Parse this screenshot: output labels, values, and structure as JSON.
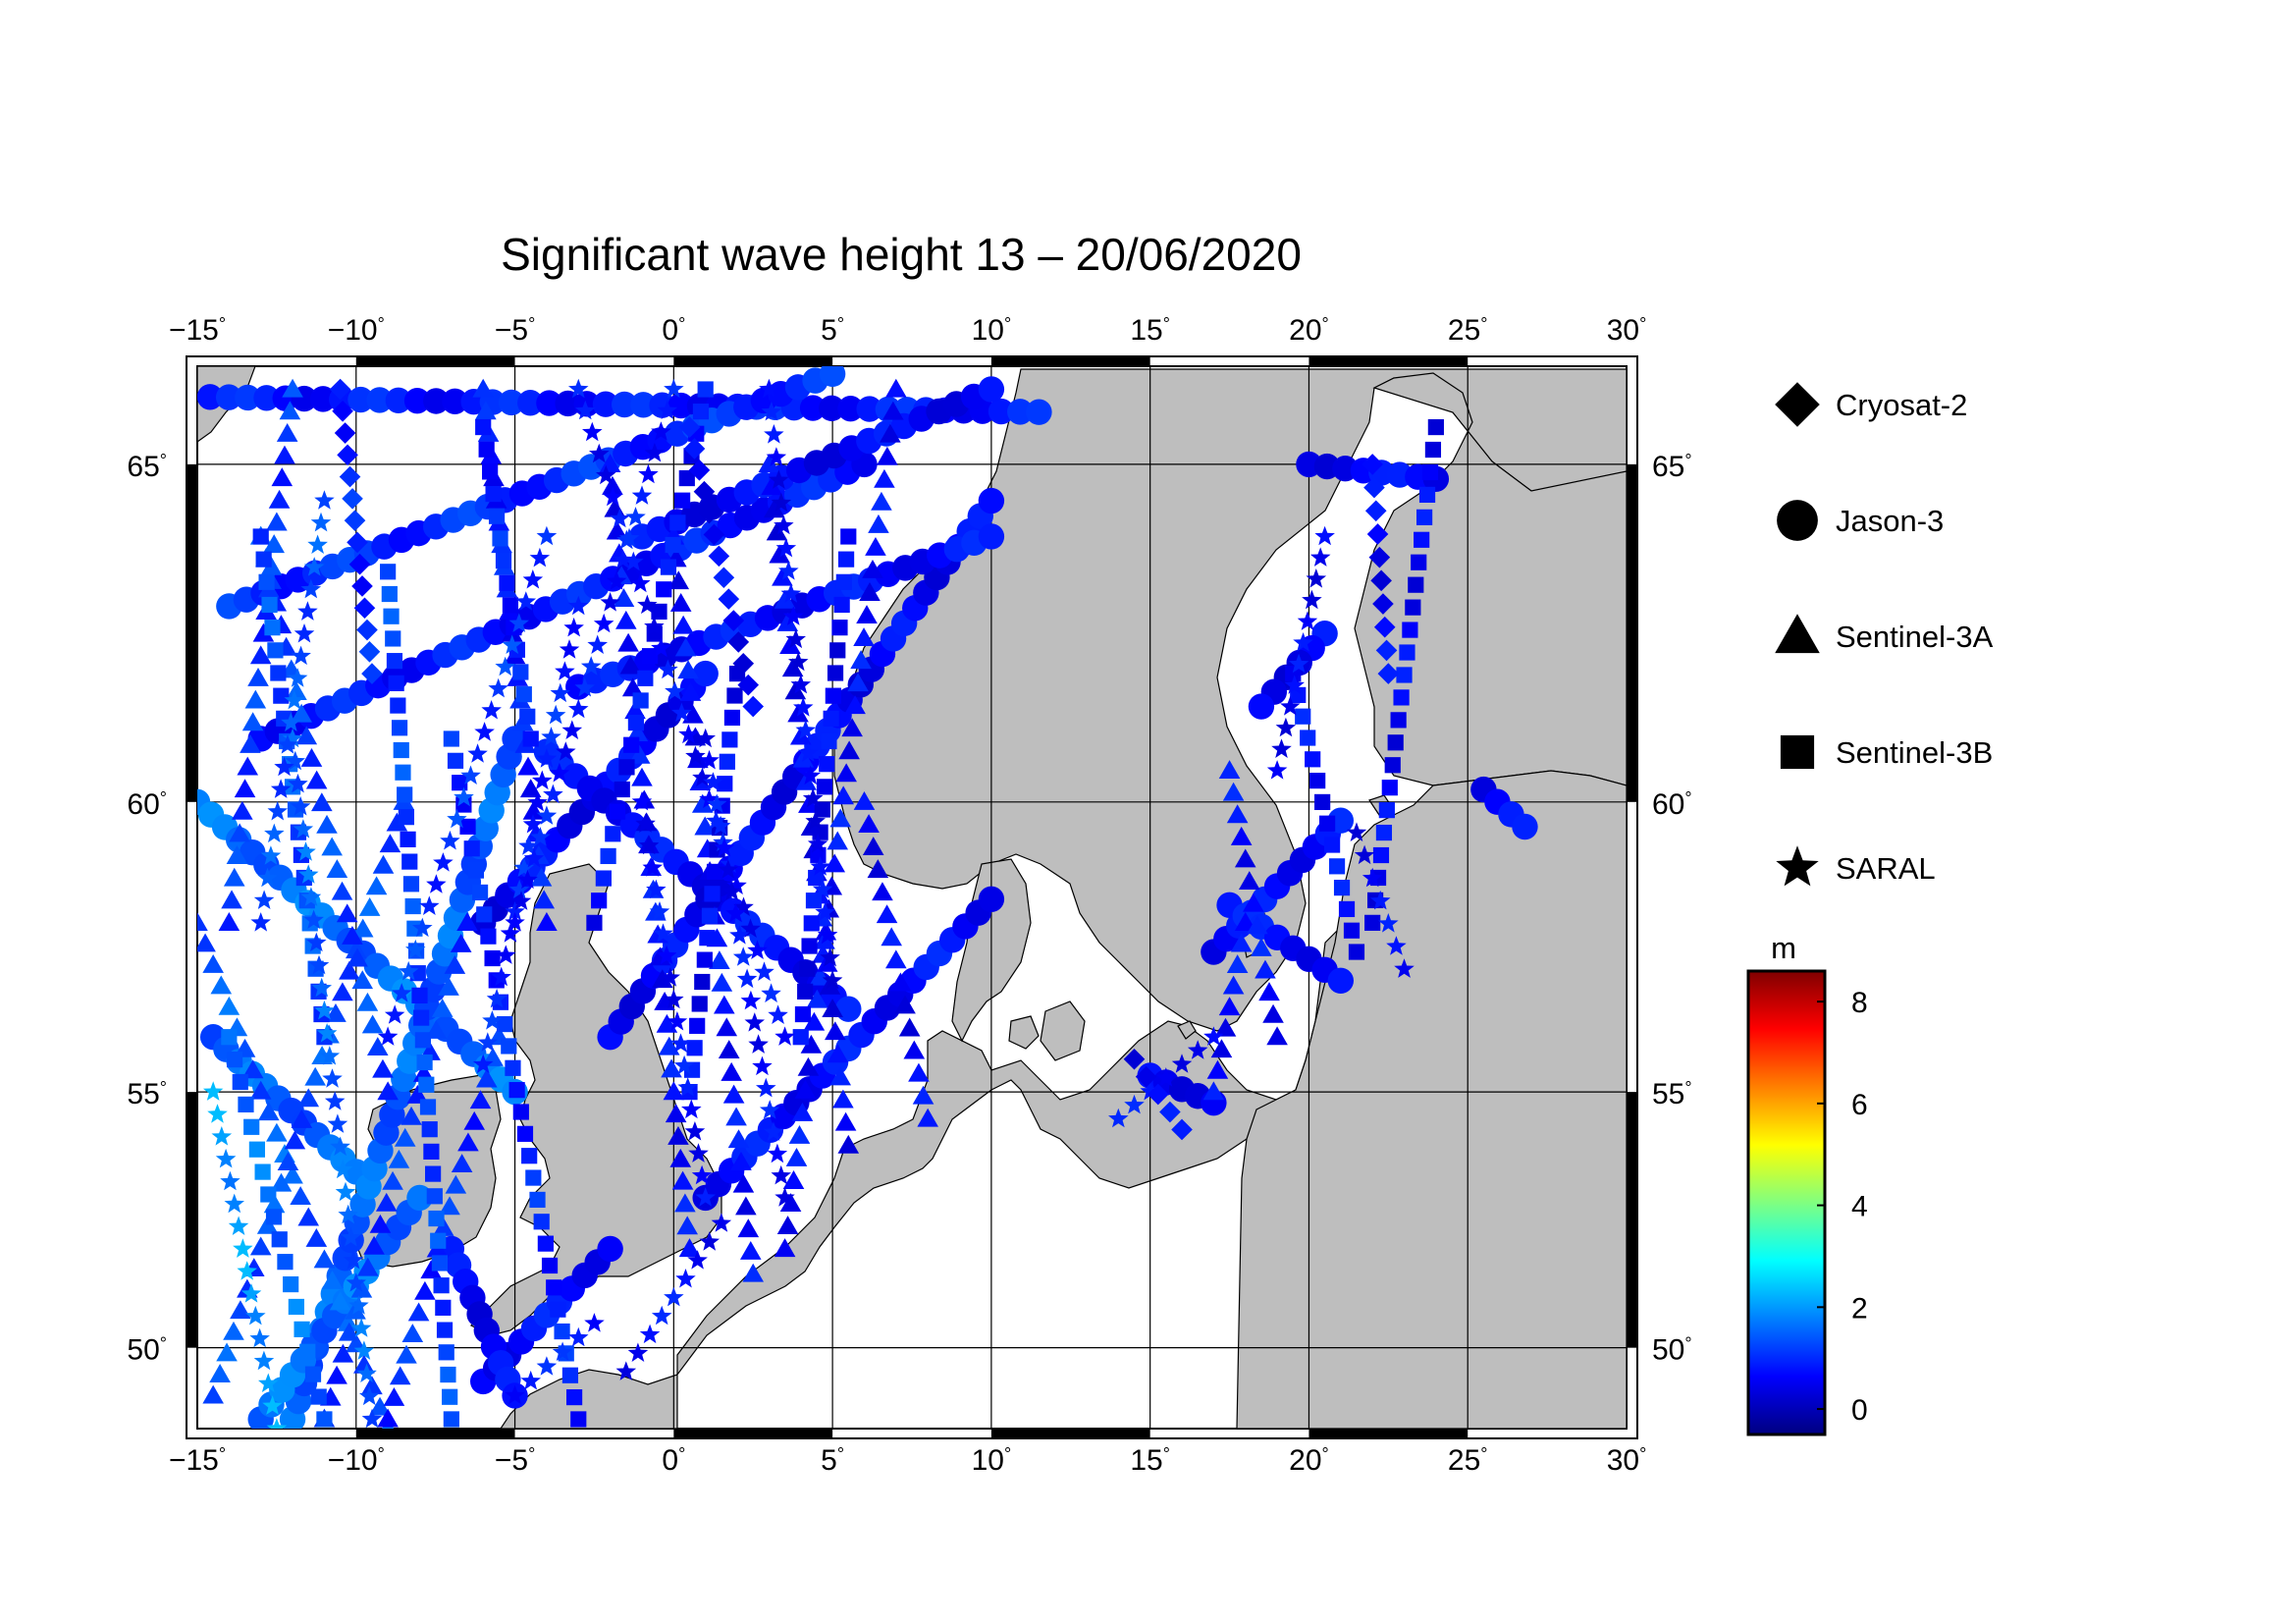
{
  "title": "Significant wave height 13 – 20/06/2020",
  "map": {
    "lon_range": [
      -15,
      30
    ],
    "lat_range": [
      48.3,
      66.3
    ],
    "lon_ticks": [
      -15,
      -10,
      -5,
      0,
      5,
      10,
      15,
      20,
      25,
      30
    ],
    "lat_ticks": [
      50,
      55,
      60,
      65
    ],
    "degree_symbol": "°",
    "land_color": "#bebebe",
    "sea_color": "#ffffff"
  },
  "legend": {
    "items": [
      {
        "label": "Cryosat-2",
        "symbol": "diamond"
      },
      {
        "label": "Jason-3",
        "symbol": "circle"
      },
      {
        "label": "Sentinel-3A",
        "symbol": "triangle"
      },
      {
        "label": "Sentinel-3B",
        "symbol": "square"
      },
      {
        "label": "SARAL",
        "symbol": "star"
      }
    ]
  },
  "colorbar": {
    "unit": "m",
    "min": -0.5,
    "max": 8.6,
    "ticks": [
      0,
      2,
      4,
      6,
      8
    ],
    "colors": [
      "#000080",
      "#0000ff",
      "#0080ff",
      "#00ffff",
      "#80ff80",
      "#ffff00",
      "#ff8000",
      "#ff0000",
      "#800000"
    ]
  },
  "tracks": [
    {
      "sat": "circle",
      "from": [
        -14.6,
        65.9
      ],
      "to": [
        11.5,
        65.7
      ],
      "h": 0.8
    },
    {
      "sat": "circle",
      "from": [
        -14.0,
        63.0
      ],
      "to": [
        5.0,
        66.2
      ],
      "h": 1.0
    },
    {
      "sat": "circle",
      "from": [
        -13.0,
        61.0
      ],
      "to": [
        6.0,
        65.0
      ],
      "h": 0.8
    },
    {
      "sat": "circle",
      "from": [
        -14.5,
        56.0
      ],
      "to": [
        -10.0,
        53.5
      ],
      "h": 1.5
    },
    {
      "sat": "circle",
      "from": [
        -15.0,
        60.0
      ],
      "to": [
        -5.0,
        55.0
      ],
      "h": 1.6
    },
    {
      "sat": "circle",
      "from": [
        -12.0,
        48.5
      ],
      "to": [
        -5.0,
        61.0
      ],
      "h": 1.5
    },
    {
      "sat": "circle",
      "from": [
        -6.0,
        58.0
      ],
      "to": [
        1.0,
        62.0
      ],
      "h": 0.6
    },
    {
      "sat": "circle",
      "from": [
        -13.0,
        48.5
      ],
      "to": [
        -8.0,
        53.0
      ],
      "h": 1.6
    },
    {
      "sat": "circle",
      "from": [
        -4.0,
        60.8
      ],
      "to": [
        5.5,
        56.5
      ],
      "h": 0.7
    },
    {
      "sat": "circle",
      "from": [
        -2.0,
        56.0
      ],
      "to": [
        10.0,
        64.5
      ],
      "h": 0.6
    },
    {
      "sat": "circle",
      "from": [
        1.0,
        53.0
      ],
      "to": [
        10.0,
        58.4
      ],
      "h": 0.7
    },
    {
      "sat": "circle",
      "from": [
        -3.0,
        61.8
      ],
      "to": [
        10.0,
        64.0
      ],
      "h": 0.7
    },
    {
      "sat": "circle",
      "from": [
        -1.0,
        64.0
      ],
      "to": [
        10.0,
        66.0
      ],
      "h": 0.6
    },
    {
      "sat": "circle",
      "from": [
        -6.0,
        49.3
      ],
      "to": [
        -2.0,
        52.0
      ],
      "h": 0.7
    },
    {
      "sat": "circle",
      "from": [
        17.0,
        57.5
      ],
      "to": [
        21.0,
        59.7
      ],
      "h": 0.7
    },
    {
      "sat": "circle",
      "from": [
        17.5,
        58.3
      ],
      "to": [
        21.0,
        57.0
      ],
      "h": 0.7
    },
    {
      "sat": "circle",
      "from": [
        20.5,
        62.6
      ],
      "to": [
        18.5,
        61.5
      ],
      "h": 0.6
    },
    {
      "sat": "circle",
      "from": [
        20.0,
        65.0
      ],
      "to": [
        24.0,
        64.8
      ],
      "h": 0.6
    },
    {
      "sat": "circle",
      "from": [
        25.5,
        60.2
      ],
      "to": [
        26.8,
        59.6
      ],
      "h": 0.6
    },
    {
      "sat": "circle",
      "from": [
        -7.0,
        52.0
      ],
      "to": [
        -5.0,
        49.0
      ],
      "h": 0.6
    },
    {
      "sat": "circle",
      "from": [
        15.0,
        55.3
      ],
      "to": [
        17.0,
        54.8
      ],
      "h": 0.6
    },
    {
      "sat": "triangle",
      "from": [
        -15.0,
        58.0
      ],
      "to": [
        -9.0,
        48.3
      ],
      "h": 1.4
    },
    {
      "sat": "triangle",
      "from": [
        -14.5,
        49.0
      ],
      "to": [
        -8.5,
        60.0
      ],
      "h": 1.3
    },
    {
      "sat": "triangle",
      "from": [
        -13.0,
        64.0
      ],
      "to": [
        -9.0,
        55.0
      ],
      "h": 1.2
    },
    {
      "sat": "triangle",
      "from": [
        -11.0,
        48.5
      ],
      "to": [
        -6.5,
        58.0
      ],
      "h": 1.1
    },
    {
      "sat": "triangle",
      "from": [
        -9.0,
        48.5
      ],
      "to": [
        -5.5,
        56.0
      ],
      "h": 1.0
    },
    {
      "sat": "triangle",
      "from": [
        0.5,
        52.0
      ],
      "to": [
        -2.0,
        65.0
      ],
      "h": 0.7
    },
    {
      "sat": "triangle",
      "from": [
        2.5,
        51.5
      ],
      "to": [
        0.0,
        64.0
      ],
      "h": 0.7
    },
    {
      "sat": "triangle",
      "from": [
        3.5,
        52.0
      ],
      "to": [
        7.0,
        66.0
      ],
      "h": 0.7
    },
    {
      "sat": "triangle",
      "from": [
        5.5,
        54.0
      ],
      "to": [
        3.0,
        65.0
      ],
      "h": 0.6
    },
    {
      "sat": "triangle",
      "from": [
        8.0,
        54.5
      ],
      "to": [
        6.0,
        60.0
      ],
      "h": 0.6
    },
    {
      "sat": "triangle",
      "from": [
        17.0,
        55.0
      ],
      "to": [
        18.0,
        58.0
      ],
      "h": 0.7
    },
    {
      "sat": "triangle",
      "from": [
        19.0,
        56.0
      ],
      "to": [
        17.5,
        60.5
      ],
      "h": 0.7
    },
    {
      "sat": "triangle",
      "from": [
        -4.0,
        58.0
      ],
      "to": [
        -6.0,
        66.0
      ],
      "h": 0.8
    },
    {
      "sat": "triangle",
      "from": [
        -12.0,
        66.0
      ],
      "to": [
        -14.0,
        58.0
      ],
      "h": 1.1
    },
    {
      "sat": "square",
      "from": [
        -14.0,
        56.0
      ],
      "to": [
        -11.0,
        48.5
      ],
      "h": 1.6
    },
    {
      "sat": "square",
      "from": [
        -13.0,
        64.0
      ],
      "to": [
        -11.0,
        56.0
      ],
      "h": 1.3
    },
    {
      "sat": "square",
      "from": [
        -9.0,
        63.5
      ],
      "to": [
        -7.0,
        48.5
      ],
      "h": 1.2
    },
    {
      "sat": "square",
      "from": [
        -7.0,
        61.0
      ],
      "to": [
        -3.0,
        48.5
      ],
      "h": 0.9
    },
    {
      "sat": "square",
      "from": [
        -6.0,
        65.5
      ],
      "to": [
        -4.5,
        61.0
      ],
      "h": 0.9
    },
    {
      "sat": "square",
      "from": [
        -2.5,
        58.0
      ],
      "to": [
        1.0,
        66.0
      ],
      "h": 0.7
    },
    {
      "sat": "square",
      "from": [
        0.5,
        55.0
      ],
      "to": [
        2.0,
        62.0
      ],
      "h": 0.6
    },
    {
      "sat": "square",
      "from": [
        4.0,
        56.0
      ],
      "to": [
        5.5,
        64.0
      ],
      "h": 0.6
    },
    {
      "sat": "square",
      "from": [
        22.0,
        58.0
      ],
      "to": [
        24.0,
        65.5
      ],
      "h": 0.6
    },
    {
      "sat": "square",
      "from": [
        19.5,
        62.0
      ],
      "to": [
        21.5,
        57.5
      ],
      "h": 0.7
    },
    {
      "sat": "star",
      "from": [
        -14.5,
        55.0
      ],
      "to": [
        -12.5,
        48.3
      ],
      "h": 2.0
    },
    {
      "sat": "star",
      "from": [
        -12.0,
        61.0
      ],
      "to": [
        -9.5,
        48.5
      ],
      "h": 1.5
    },
    {
      "sat": "star",
      "from": [
        -9.0,
        56.0
      ],
      "to": [
        -4.0,
        64.0
      ],
      "h": 1.1
    },
    {
      "sat": "star",
      "from": [
        -6.0,
        55.5
      ],
      "to": [
        -3.0,
        63.0
      ],
      "h": 0.9
    },
    {
      "sat": "star",
      "from": [
        -3.0,
        66.0
      ],
      "to": [
        3.5,
        56.0
      ],
      "h": 0.7
    },
    {
      "sat": "star",
      "from": [
        -1.0,
        60.0
      ],
      "to": [
        1.0,
        53.0
      ],
      "h": 0.7
    },
    {
      "sat": "star",
      "from": [
        1.0,
        61.0
      ],
      "to": [
        3.5,
        53.0
      ],
      "h": 0.7
    },
    {
      "sat": "star",
      "from": [
        3.0,
        66.0
      ],
      "to": [
        5.0,
        57.0
      ],
      "h": 0.6
    },
    {
      "sat": "star",
      "from": [
        0.0,
        66.0
      ],
      "to": [
        -5.0,
        58.0
      ],
      "h": 0.8
    },
    {
      "sat": "star",
      "from": [
        1.5,
        52.5
      ],
      "to": [
        -1.5,
        49.5
      ],
      "h": 0.7
    },
    {
      "sat": "star",
      "from": [
        -5.0,
        49.0
      ],
      "to": [
        -2.5,
        50.5
      ],
      "h": 0.8
    },
    {
      "sat": "star",
      "from": [
        14.0,
        54.5
      ],
      "to": [
        17.0,
        56.0
      ],
      "h": 0.7
    },
    {
      "sat": "star",
      "from": [
        20.5,
        64.0
      ],
      "to": [
        19.0,
        60.5
      ],
      "h": 0.6
    },
    {
      "sat": "star",
      "from": [
        21.5,
        59.5
      ],
      "to": [
        23.0,
        57.2
      ],
      "h": 0.6
    },
    {
      "sat": "star",
      "from": [
        -11.0,
        64.5
      ],
      "to": [
        -13.0,
        58.0
      ],
      "h": 1.3
    },
    {
      "sat": "diamond",
      "from": [
        0.5,
        65.5
      ],
      "to": [
        2.5,
        61.5
      ],
      "h": 0.6
    },
    {
      "sat": "diamond",
      "from": [
        -10.5,
        66.0
      ],
      "to": [
        -9.5,
        62.0
      ],
      "h": 0.9
    },
    {
      "sat": "diamond",
      "from": [
        14.5,
        55.6
      ],
      "to": [
        16.0,
        54.3
      ],
      "h": 0.6
    },
    {
      "sat": "diamond",
      "from": [
        22.0,
        65.0
      ],
      "to": [
        22.5,
        62.0
      ],
      "h": 0.6
    }
  ]
}
